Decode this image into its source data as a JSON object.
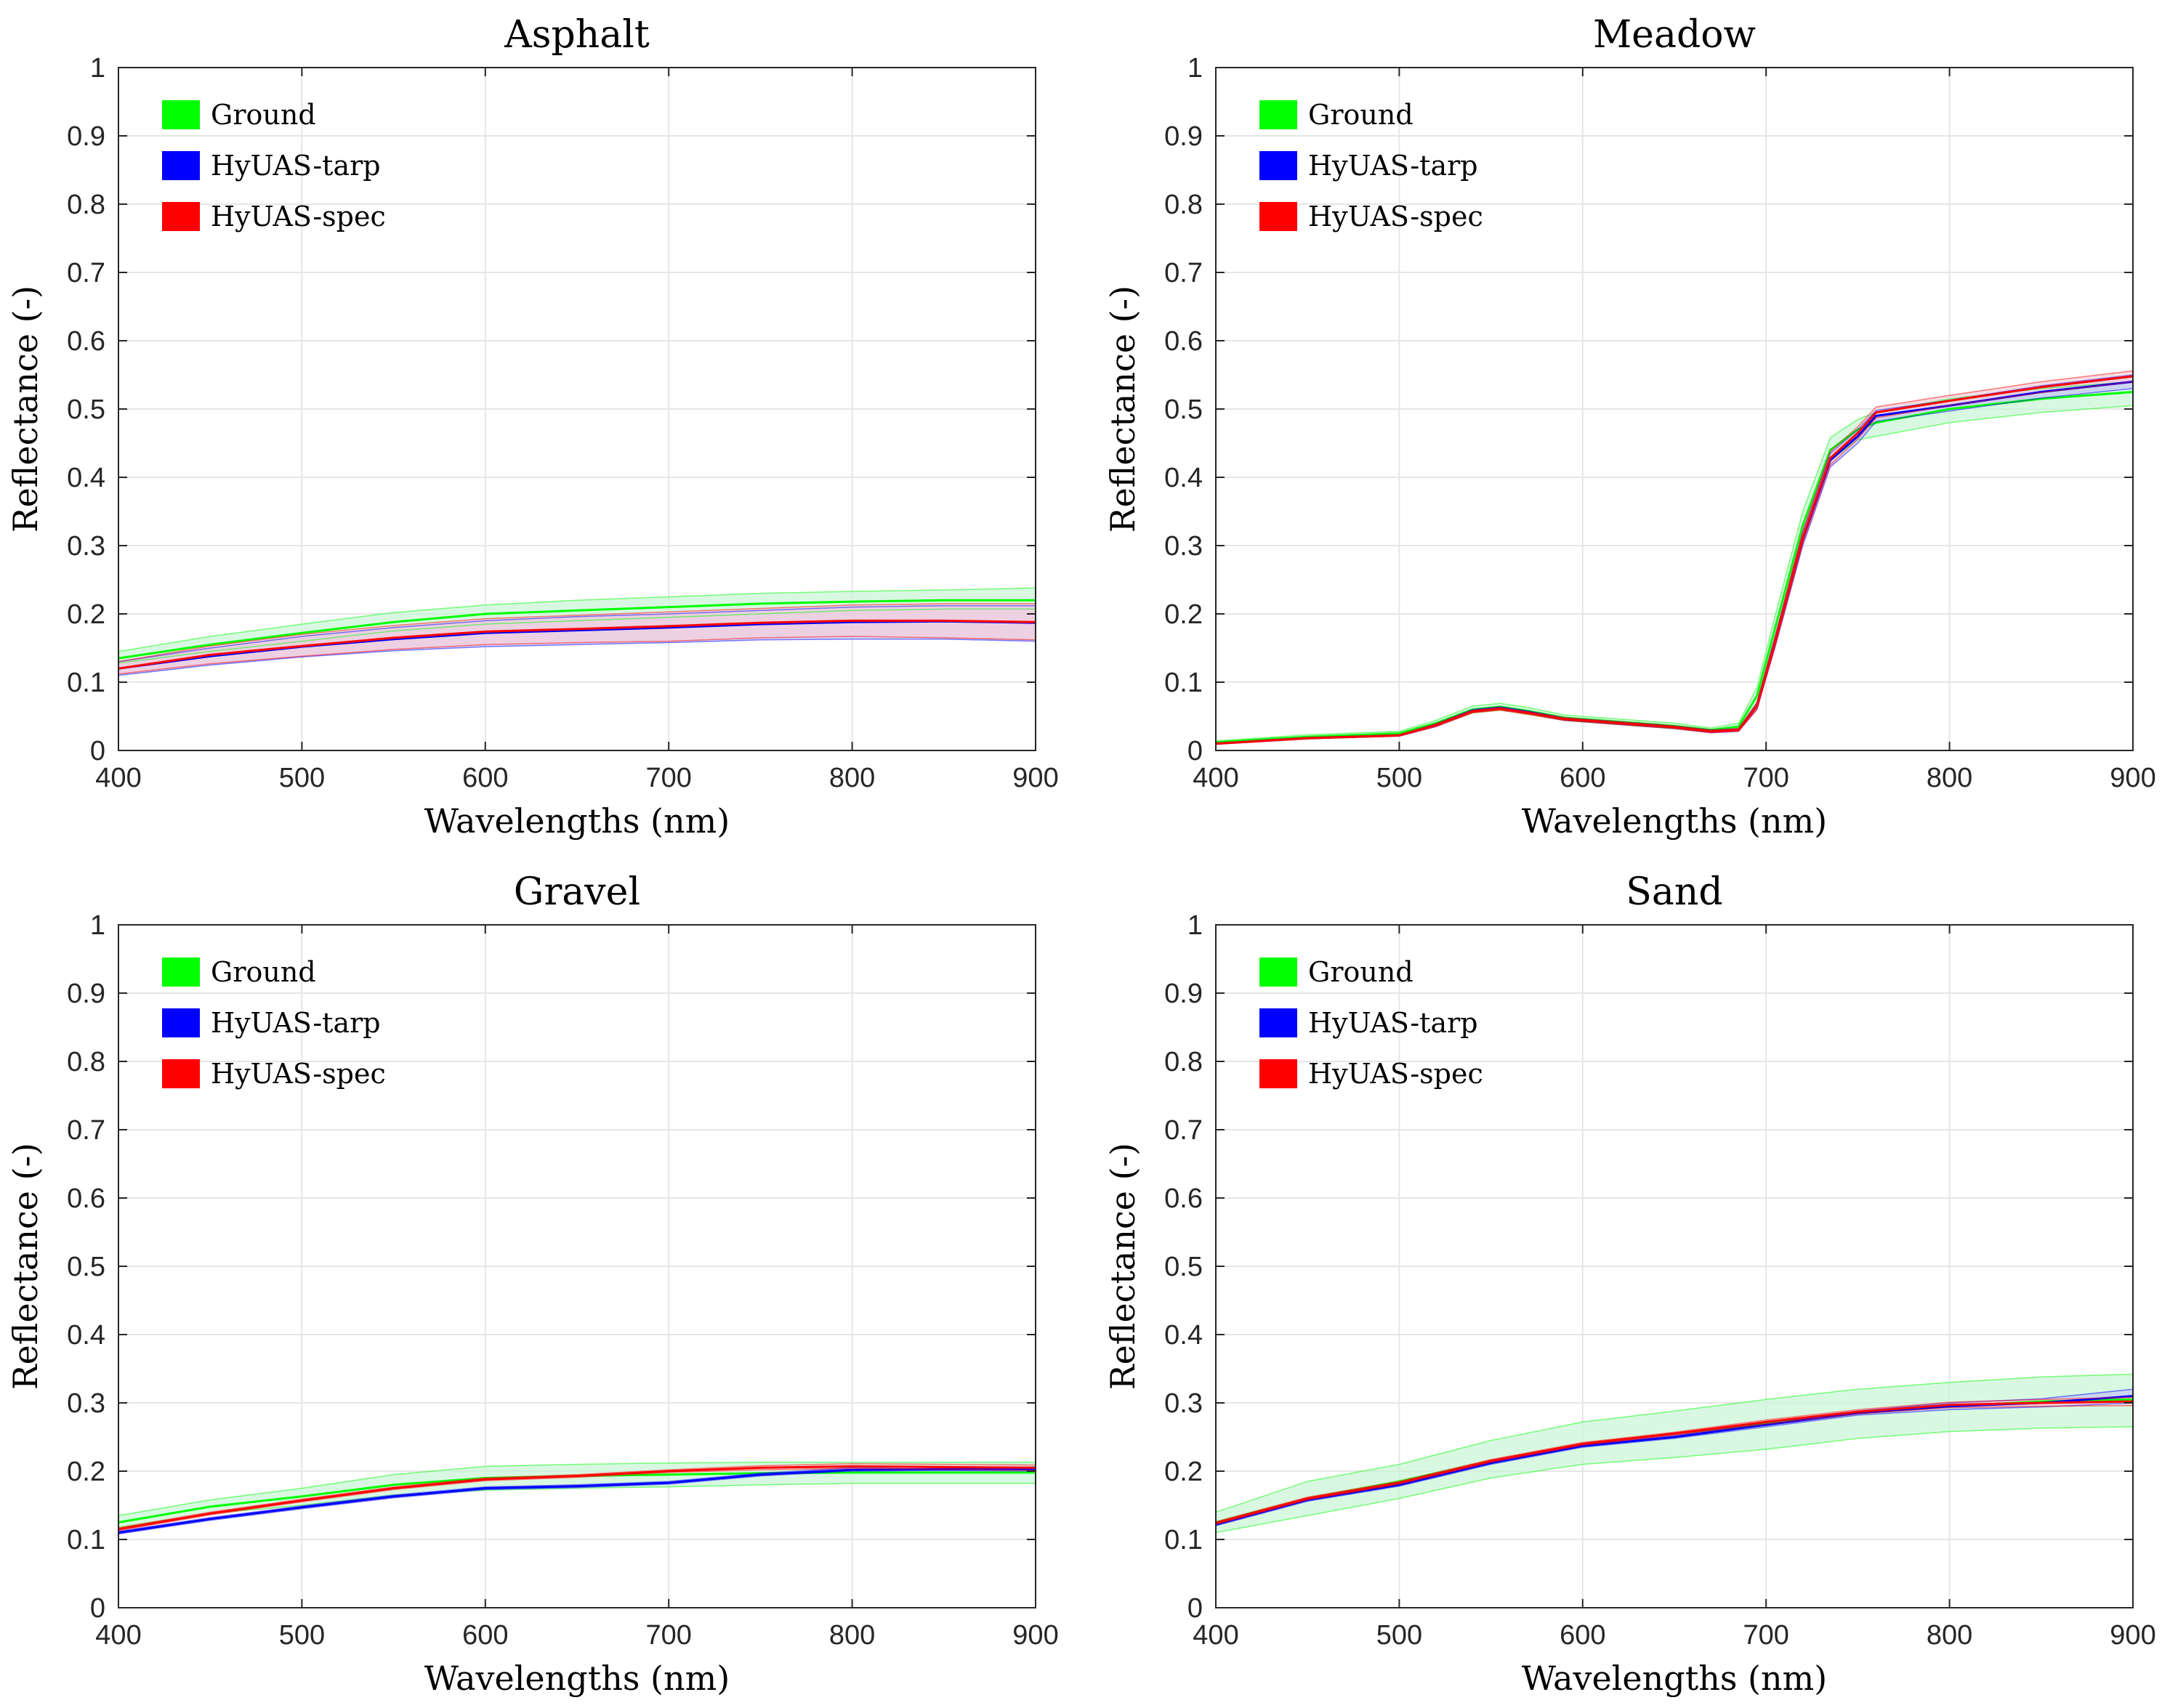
{
  "chart_data": [
    {
      "type": "area",
      "title": "Asphalt",
      "xlabel": "Wavelengths (nm)",
      "ylabel": "Reflectance (-)",
      "xlim": [
        400,
        900
      ],
      "ylim": [
        0,
        1
      ],
      "grid": true,
      "legend_position": "top-left",
      "xticks": [
        "400",
        "500",
        "600",
        "700",
        "800",
        "900"
      ],
      "yticks": [
        "0",
        "0.1",
        "0.2",
        "0.3",
        "0.4",
        "0.5",
        "0.6",
        "0.7",
        "0.8",
        "0.9",
        "1"
      ],
      "series": [
        {
          "name": "Ground",
          "color": "#00ff00",
          "x": [
            400,
            450,
            500,
            550,
            600,
            650,
            700,
            750,
            800,
            850,
            900
          ],
          "mean": [
            0.135,
            0.155,
            0.172,
            0.188,
            0.2,
            0.205,
            0.21,
            0.215,
            0.218,
            0.22,
            0.22
          ],
          "lower": [
            0.128,
            0.145,
            0.16,
            0.175,
            0.185,
            0.19,
            0.195,
            0.2,
            0.205,
            0.207,
            0.207
          ],
          "upper": [
            0.145,
            0.167,
            0.185,
            0.202,
            0.213,
            0.22,
            0.225,
            0.23,
            0.233,
            0.235,
            0.238
          ]
        },
        {
          "name": "HyUAS-tarp",
          "color": "#0000ff",
          "x": [
            400,
            450,
            500,
            550,
            600,
            650,
            700,
            750,
            800,
            850,
            900
          ],
          "mean": [
            0.12,
            0.138,
            0.152,
            0.163,
            0.172,
            0.176,
            0.18,
            0.185,
            0.188,
            0.189,
            0.187
          ],
          "lower": [
            0.11,
            0.125,
            0.137,
            0.146,
            0.152,
            0.155,
            0.158,
            0.162,
            0.163,
            0.163,
            0.16
          ],
          "upper": [
            0.13,
            0.15,
            0.167,
            0.18,
            0.19,
            0.196,
            0.2,
            0.205,
            0.21,
            0.212,
            0.212
          ]
        },
        {
          "name": "HyUAS-spec",
          "color": "#ff0000",
          "x": [
            400,
            450,
            500,
            550,
            600,
            650,
            700,
            750,
            800,
            850,
            900
          ],
          "mean": [
            0.12,
            0.14,
            0.153,
            0.165,
            0.174,
            0.178,
            0.182,
            0.187,
            0.19,
            0.19,
            0.188
          ],
          "lower": [
            0.112,
            0.127,
            0.138,
            0.148,
            0.155,
            0.158,
            0.16,
            0.165,
            0.167,
            0.165,
            0.162
          ],
          "upper": [
            0.13,
            0.153,
            0.17,
            0.183,
            0.193,
            0.198,
            0.203,
            0.208,
            0.213,
            0.215,
            0.215
          ]
        }
      ]
    },
    {
      "type": "area",
      "title": "Meadow",
      "xlabel": "Wavelengths (nm)",
      "ylabel": "Reflectance (-)",
      "xlim": [
        400,
        900
      ],
      "ylim": [
        0,
        1
      ],
      "grid": true,
      "legend_position": "top-left",
      "xticks": [
        "400",
        "500",
        "600",
        "700",
        "800",
        "900"
      ],
      "yticks": [
        "0",
        "0.1",
        "0.2",
        "0.3",
        "0.4",
        "0.5",
        "0.6",
        "0.7",
        "0.8",
        "0.9",
        "1"
      ],
      "series": [
        {
          "name": "Ground",
          "color": "#00ff00",
          "x": [
            400,
            450,
            500,
            520,
            540,
            555,
            570,
            590,
            610,
            630,
            650,
            670,
            685,
            695,
            705,
            720,
            735,
            750,
            760,
            800,
            850,
            900
          ],
          "mean": [
            0.012,
            0.02,
            0.025,
            0.04,
            0.06,
            0.064,
            0.058,
            0.048,
            0.044,
            0.04,
            0.036,
            0.03,
            0.035,
            0.08,
            0.18,
            0.33,
            0.44,
            0.47,
            0.48,
            0.5,
            0.515,
            0.525
          ],
          "lower": [
            0.01,
            0.017,
            0.022,
            0.036,
            0.055,
            0.059,
            0.053,
            0.044,
            0.04,
            0.036,
            0.032,
            0.027,
            0.031,
            0.07,
            0.165,
            0.315,
            0.425,
            0.455,
            0.46,
            0.48,
            0.495,
            0.505
          ],
          "upper": [
            0.014,
            0.023,
            0.028,
            0.044,
            0.065,
            0.069,
            0.063,
            0.052,
            0.048,
            0.044,
            0.04,
            0.033,
            0.04,
            0.092,
            0.198,
            0.35,
            0.458,
            0.485,
            0.495,
            0.515,
            0.53,
            0.54
          ]
        },
        {
          "name": "HyUAS-tarp",
          "color": "#0000ff",
          "x": [
            400,
            450,
            500,
            520,
            540,
            555,
            570,
            590,
            610,
            630,
            650,
            670,
            685,
            695,
            705,
            720,
            735,
            750,
            760,
            800,
            850,
            900
          ],
          "mean": [
            0.01,
            0.018,
            0.022,
            0.037,
            0.058,
            0.062,
            0.056,
            0.046,
            0.042,
            0.038,
            0.034,
            0.028,
            0.03,
            0.065,
            0.16,
            0.31,
            0.425,
            0.46,
            0.49,
            0.505,
            0.525,
            0.54
          ],
          "lower": [
            0.009,
            0.017,
            0.021,
            0.035,
            0.056,
            0.06,
            0.054,
            0.044,
            0.04,
            0.036,
            0.032,
            0.026,
            0.028,
            0.06,
            0.152,
            0.3,
            0.415,
            0.45,
            0.482,
            0.497,
            0.516,
            0.53
          ],
          "upper": [
            0.011,
            0.019,
            0.023,
            0.039,
            0.06,
            0.064,
            0.058,
            0.048,
            0.044,
            0.04,
            0.036,
            0.03,
            0.032,
            0.07,
            0.168,
            0.32,
            0.435,
            0.47,
            0.498,
            0.513,
            0.534,
            0.55
          ]
        },
        {
          "name": "HyUAS-spec",
          "color": "#ff0000",
          "x": [
            400,
            450,
            500,
            520,
            540,
            555,
            570,
            590,
            610,
            630,
            650,
            670,
            685,
            695,
            705,
            720,
            735,
            750,
            760,
            800,
            850,
            900
          ],
          "mean": [
            0.01,
            0.018,
            0.022,
            0.037,
            0.057,
            0.061,
            0.055,
            0.046,
            0.042,
            0.038,
            0.034,
            0.028,
            0.03,
            0.065,
            0.16,
            0.312,
            0.428,
            0.465,
            0.495,
            0.512,
            0.532,
            0.548
          ],
          "lower": [
            0.009,
            0.017,
            0.021,
            0.035,
            0.055,
            0.059,
            0.053,
            0.044,
            0.04,
            0.036,
            0.032,
            0.026,
            0.028,
            0.06,
            0.153,
            0.303,
            0.418,
            0.456,
            0.487,
            0.505,
            0.524,
            0.54
          ],
          "upper": [
            0.011,
            0.019,
            0.023,
            0.039,
            0.059,
            0.063,
            0.057,
            0.048,
            0.044,
            0.04,
            0.036,
            0.03,
            0.032,
            0.07,
            0.168,
            0.322,
            0.438,
            0.474,
            0.503,
            0.52,
            0.54,
            0.556
          ]
        }
      ]
    },
    {
      "type": "area",
      "title": "Gravel",
      "xlabel": "Wavelengths (nm)",
      "ylabel": "Reflectance (-)",
      "xlim": [
        400,
        900
      ],
      "ylim": [
        0,
        1
      ],
      "grid": true,
      "legend_position": "top-left",
      "xticks": [
        "400",
        "500",
        "600",
        "700",
        "800",
        "900"
      ],
      "yticks": [
        "0",
        "0.1",
        "0.2",
        "0.3",
        "0.4",
        "0.5",
        "0.6",
        "0.7",
        "0.8",
        "0.9",
        "1"
      ],
      "series": [
        {
          "name": "Ground",
          "color": "#00ff00",
          "x": [
            400,
            450,
            500,
            550,
            600,
            650,
            700,
            750,
            800,
            850,
            900
          ],
          "mean": [
            0.125,
            0.148,
            0.163,
            0.18,
            0.19,
            0.193,
            0.195,
            0.197,
            0.198,
            0.198,
            0.198
          ],
          "lower": [
            0.118,
            0.138,
            0.15,
            0.165,
            0.172,
            0.175,
            0.177,
            0.18,
            0.182,
            0.182,
            0.182
          ],
          "upper": [
            0.135,
            0.158,
            0.175,
            0.195,
            0.207,
            0.21,
            0.212,
            0.213,
            0.213,
            0.213,
            0.213
          ]
        },
        {
          "name": "HyUAS-tarp",
          "color": "#0000ff",
          "x": [
            400,
            450,
            500,
            550,
            600,
            650,
            700,
            750,
            800,
            850,
            900
          ],
          "mean": [
            0.11,
            0.13,
            0.147,
            0.163,
            0.175,
            0.178,
            0.183,
            0.195,
            0.202,
            0.203,
            0.203
          ],
          "lower": [
            0.108,
            0.128,
            0.145,
            0.161,
            0.173,
            0.176,
            0.181,
            0.193,
            0.2,
            0.201,
            0.2
          ],
          "upper": [
            0.112,
            0.132,
            0.149,
            0.165,
            0.177,
            0.18,
            0.185,
            0.197,
            0.205,
            0.206,
            0.206
          ]
        },
        {
          "name": "HyUAS-spec",
          "color": "#ff0000",
          "x": [
            400,
            450,
            500,
            550,
            600,
            650,
            700,
            750,
            800,
            850,
            900
          ],
          "mean": [
            0.115,
            0.138,
            0.157,
            0.175,
            0.188,
            0.193,
            0.2,
            0.205,
            0.207,
            0.206,
            0.205
          ],
          "lower": [
            0.113,
            0.136,
            0.155,
            0.173,
            0.186,
            0.191,
            0.198,
            0.202,
            0.204,
            0.203,
            0.201
          ],
          "upper": [
            0.117,
            0.14,
            0.159,
            0.177,
            0.19,
            0.195,
            0.202,
            0.208,
            0.211,
            0.21,
            0.209
          ]
        }
      ]
    },
    {
      "type": "area",
      "title": "Sand",
      "xlabel": "Wavelengths (nm)",
      "ylabel": "Reflectance (-)",
      "xlim": [
        400,
        900
      ],
      "ylim": [
        0,
        1
      ],
      "grid": true,
      "legend_position": "top-left",
      "xticks": [
        "400",
        "500",
        "600",
        "700",
        "800",
        "900"
      ],
      "yticks": [
        "0",
        "0.1",
        "0.2",
        "0.3",
        "0.4",
        "0.5",
        "0.6",
        "0.7",
        "0.8",
        "0.9",
        "1"
      ],
      "series": [
        {
          "name": "Ground",
          "color": "#00ff00",
          "x": [
            400,
            450,
            500,
            550,
            600,
            650,
            700,
            750,
            800,
            850,
            900
          ],
          "mean": [
            0.125,
            0.16,
            0.185,
            0.215,
            0.24,
            0.255,
            0.27,
            0.285,
            0.295,
            0.302,
            0.305
          ],
          "lower": [
            0.11,
            0.135,
            0.16,
            0.19,
            0.21,
            0.22,
            0.232,
            0.248,
            0.258,
            0.263,
            0.265
          ],
          "upper": [
            0.14,
            0.185,
            0.21,
            0.245,
            0.272,
            0.288,
            0.305,
            0.32,
            0.33,
            0.338,
            0.342
          ]
        },
        {
          "name": "HyUAS-tarp",
          "color": "#0000ff",
          "x": [
            400,
            450,
            500,
            550,
            600,
            650,
            700,
            750,
            800,
            850,
            900
          ],
          "mean": [
            0.122,
            0.158,
            0.18,
            0.212,
            0.237,
            0.25,
            0.268,
            0.285,
            0.295,
            0.3,
            0.31
          ],
          "lower": [
            0.12,
            0.156,
            0.178,
            0.21,
            0.235,
            0.248,
            0.265,
            0.282,
            0.29,
            0.294,
            0.3
          ],
          "upper": [
            0.124,
            0.16,
            0.182,
            0.214,
            0.239,
            0.252,
            0.271,
            0.288,
            0.3,
            0.306,
            0.32
          ]
        },
        {
          "name": "HyUAS-spec",
          "color": "#ff0000",
          "x": [
            400,
            450,
            500,
            550,
            600,
            650,
            700,
            750,
            800,
            850,
            900
          ],
          "mean": [
            0.124,
            0.16,
            0.183,
            0.215,
            0.24,
            0.255,
            0.272,
            0.287,
            0.297,
            0.3,
            0.302
          ],
          "lower": [
            0.122,
            0.158,
            0.181,
            0.213,
            0.238,
            0.253,
            0.269,
            0.284,
            0.293,
            0.295,
            0.296
          ],
          "upper": [
            0.126,
            0.162,
            0.185,
            0.217,
            0.242,
            0.257,
            0.275,
            0.29,
            0.301,
            0.305,
            0.308
          ]
        }
      ]
    }
  ]
}
